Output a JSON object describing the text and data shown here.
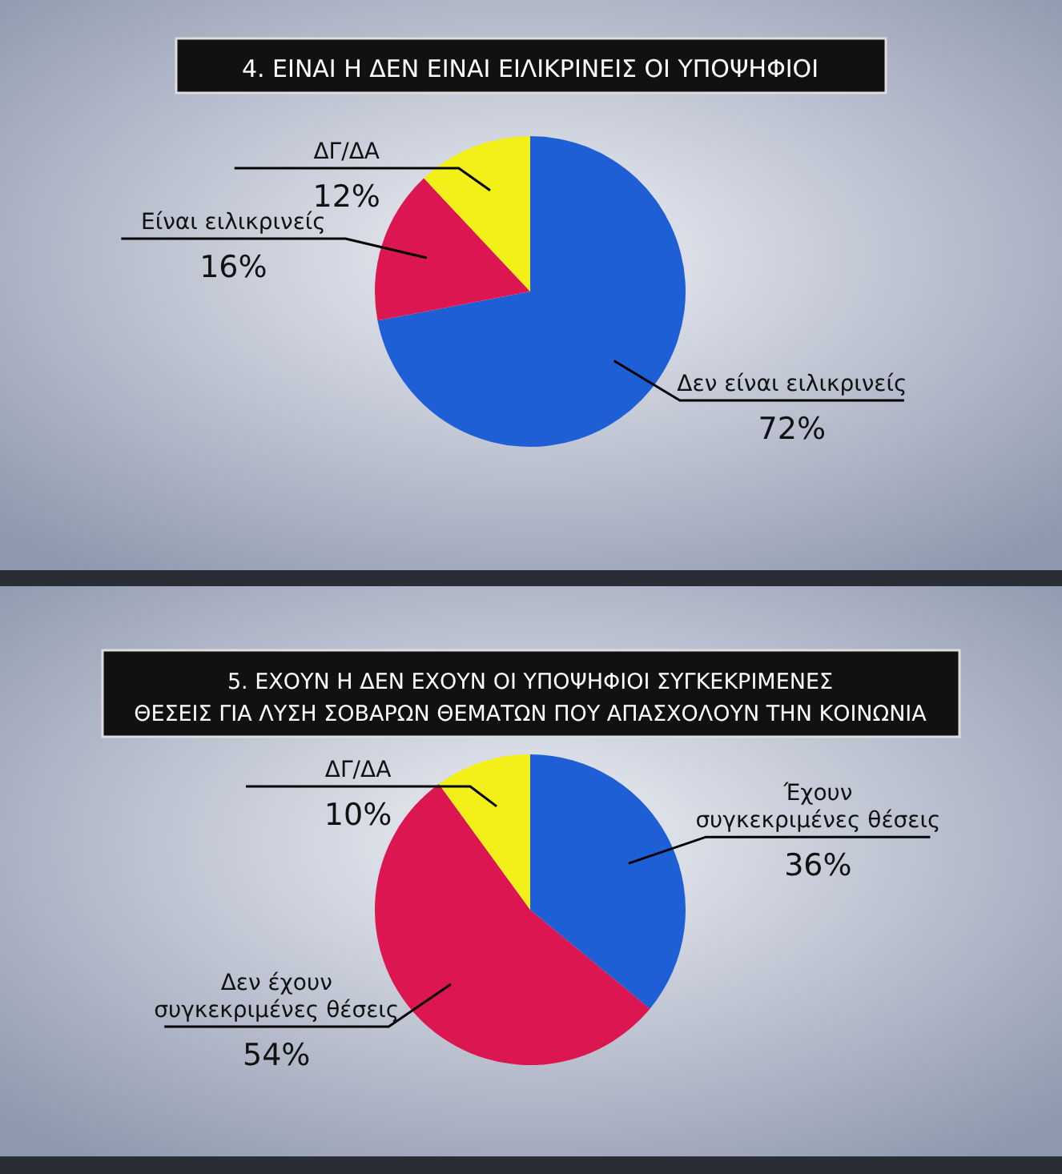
{
  "chart_data": [
    {
      "type": "pie",
      "title": "4. ΕΙΝΑΙ Η ΔΕΝ ΕΙΝΑΙ ΕΙΛΙΚΡΙΝΕΙΣ ΟΙ ΥΠΟΨΗΦΙΟΙ",
      "categories": [
        "Δεν είναι ειλικρινείς",
        "Είναι ειλικρινείς",
        "ΔΓ/ΔΑ"
      ],
      "values": [
        72,
        16,
        12
      ],
      "value_labels": [
        "72%",
        "16%",
        "12%"
      ],
      "colors": [
        "#1f5fd6",
        "#dc1650",
        "#f2f018"
      ]
    },
    {
      "type": "pie",
      "title": "5. ΕΧΟΥΝ Η ΔΕΝ ΕΧΟΥΝ ΟΙ ΥΠΟΨΗΦΙΟΙ ΣΥΓΚΕΚΡΙΜΕΝΕΣ\nΘΕΣΕΙΣ ΓΙΑ ΛΥΣΗ ΣΟΒΑΡΩΝ ΘΕΜΑΤΩΝ ΠΟΥ ΑΠΑΣΧΟΛΟΥΝ ΤΗΝ ΚΟΙΝΩΝΙΑ",
      "categories": [
        "Έχουν\nσυγκεκριμένες θέσεις",
        "Δεν έχουν\nσυγκεκριμένες θέσεις",
        "ΔΓ/ΔΑ"
      ],
      "values": [
        36,
        54,
        10
      ],
      "value_labels": [
        "36%",
        "54%",
        "10%"
      ],
      "colors": [
        "#1f5fd6",
        "#dc1650",
        "#f2f018"
      ]
    }
  ]
}
